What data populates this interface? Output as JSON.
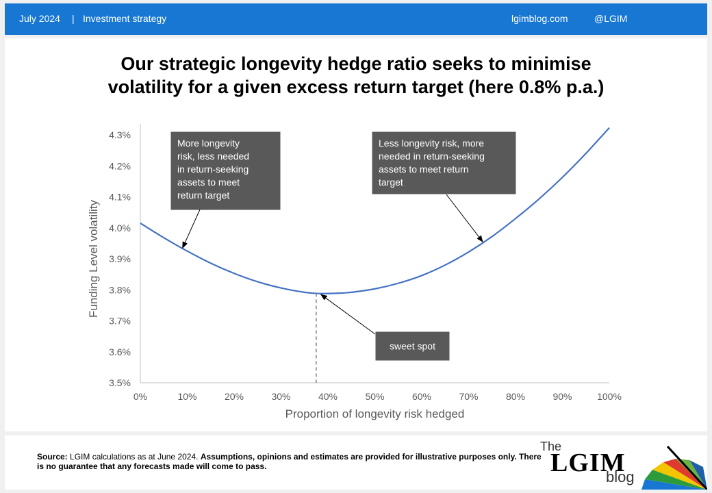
{
  "header": {
    "date": "July 2024",
    "separator": "|",
    "category": "Investment strategy",
    "site": "lgimblog.com",
    "handle": "@LGIM"
  },
  "title": {
    "line1": "Our strategic longevity hedge ratio seeks to minimise",
    "line2": "volatility for a given excess return target (here 0.8% p.a.)"
  },
  "chart_data": {
    "type": "line",
    "xlabel": "Proportion of longevity risk hedged",
    "ylabel": "Funding Level volatility",
    "xlim": [
      0,
      100
    ],
    "ylim": [
      3.5,
      4.3
    ],
    "x_ticks": [
      "0%",
      "10%",
      "20%",
      "30%",
      "40%",
      "50%",
      "60%",
      "70%",
      "80%",
      "90%",
      "100%"
    ],
    "y_ticks": [
      "3.5%",
      "3.6%",
      "3.7%",
      "3.8%",
      "3.9%",
      "4.0%",
      "4.1%",
      "4.2%",
      "4.3%"
    ],
    "series": [
      {
        "color": "#4472c4",
        "x": [
          0,
          5,
          10,
          15,
          20,
          25,
          30,
          35,
          38,
          42,
          45,
          50,
          55,
          60,
          65,
          70,
          75,
          80,
          85,
          90,
          95,
          100
        ],
        "y": [
          4.015,
          3.968,
          3.925,
          3.886,
          3.853,
          3.826,
          3.806,
          3.792,
          3.788,
          3.789,
          3.792,
          3.803,
          3.821,
          3.846,
          3.88,
          3.922,
          3.972,
          4.03,
          4.093,
          4.163,
          4.24,
          4.323
        ]
      }
    ],
    "sweet_spot_x": 37.5,
    "annotations": [
      {
        "lines": [
          "More longevity",
          "risk, less needed",
          "in return-seeking",
          "assets to meet",
          "return target"
        ],
        "target_x": 9.0,
        "target_y": 3.935
      },
      {
        "lines": [
          "Less longevity risk, more",
          "needed in return-seeking",
          "assets to meet return",
          "target"
        ],
        "target_x": 73.0,
        "target_y": 3.955
      },
      {
        "lines": [
          "sweet spot"
        ],
        "target_x": 38.5,
        "target_y": 3.785
      }
    ]
  },
  "footer": {
    "source_label": "Source:",
    "source_text": "LGIM calculations as at June 2024.",
    "disclaimer": "Assumptions,  opinions and estimates are provided for illustrative purposes only. There is no guarantee that any forecasts  made will come to pass."
  },
  "logo": {
    "the": "The",
    "main": "LGIM",
    "blog": "blog"
  }
}
